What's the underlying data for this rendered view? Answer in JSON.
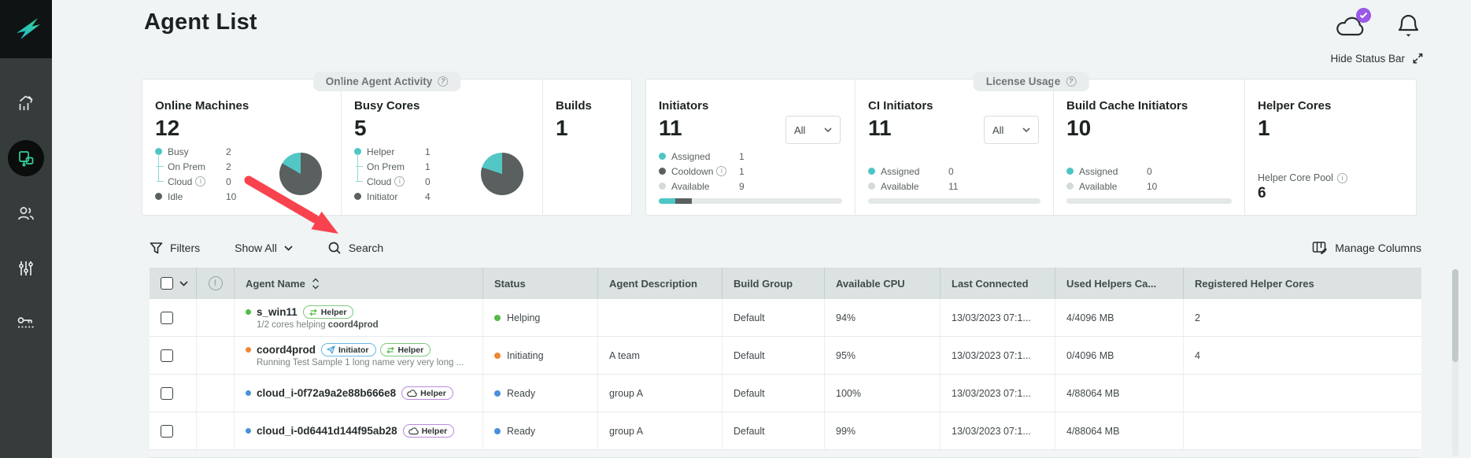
{
  "header": {
    "title": "Agent List",
    "hide_status_bar_label": "Hide Status Bar"
  },
  "sidebar": {
    "icons": [
      "analytics-icon",
      "agents-icon",
      "users-icon",
      "sliders-icon",
      "license-key-icon"
    ],
    "active_item": "agents"
  },
  "activity": {
    "tab_label": "Online Agent Activity",
    "online_machines": {
      "title": "Online Machines",
      "value": "12",
      "busy_label": "Busy",
      "busy_value": "2",
      "on_prem_label": "On Prem",
      "on_prem_value": "2",
      "cloud_label": "Cloud",
      "cloud_value": "0",
      "idle_label": "Idle",
      "idle_value": "10",
      "pie": {
        "type": "pie",
        "slices": [
          {
            "label": "Busy",
            "value": 2,
            "color": "#52c7c5"
          },
          {
            "label": "Idle",
            "value": 10,
            "color": "#5a6060"
          }
        ]
      }
    },
    "busy_cores": {
      "title": "Busy Cores",
      "value": "5",
      "helper_label": "Helper",
      "helper_value": "1",
      "on_prem_label": "On Prem",
      "on_prem_value": "1",
      "cloud_label": "Cloud",
      "cloud_value": "0",
      "initiator_label": "Initiator",
      "initiator_value": "4",
      "pie": {
        "type": "pie",
        "slices": [
          {
            "label": "Helper",
            "value": 1,
            "color": "#52c7c5"
          },
          {
            "label": "Initiator",
            "value": 4,
            "color": "#5a6060"
          }
        ]
      }
    },
    "builds": {
      "title": "Builds",
      "value": "1"
    }
  },
  "license": {
    "tab_label": "License Usage",
    "initiators": {
      "title": "Initiators",
      "value": "11",
      "filter_value": "All",
      "assigned_label": "Assigned",
      "assigned_value": "1",
      "cooldown_label": "Cooldown",
      "cooldown_value": "1",
      "available_label": "Available",
      "available_value": "9",
      "bar_segments": [
        {
          "color": "#4cc6c4",
          "fraction": 0.091
        },
        {
          "color": "#5a6060",
          "fraction": 0.091
        }
      ]
    },
    "ci_initiators": {
      "title": "CI Initiators",
      "value": "11",
      "filter_value": "All",
      "assigned_label": "Assigned",
      "assigned_value": "0",
      "available_label": "Available",
      "available_value": "11",
      "bar_segments": []
    },
    "build_cache_initiators": {
      "title": "Build Cache Initiators",
      "value": "10",
      "assigned_label": "Assigned",
      "assigned_value": "0",
      "available_label": "Available",
      "available_value": "10",
      "bar_segments": []
    },
    "helper_cores": {
      "title": "Helper Cores",
      "value": "1",
      "pool_label": "Helper Core Pool",
      "pool_value": "6"
    }
  },
  "toolbar": {
    "filters_label": "Filters",
    "show_filter_value": "Show All",
    "search_label": "Search",
    "manage_columns_label": "Manage Columns"
  },
  "table": {
    "columns": [
      "Agent Name",
      "Status",
      "Agent Description",
      "Build Group",
      "Available CPU",
      "Last Connected",
      "Used Helpers Ca...",
      "Registered Helper Cores"
    ],
    "rows": [
      {
        "dot_color": "#56b949",
        "name": "s_win11",
        "badges": [
          {
            "type": "helper",
            "label": "Helper"
          }
        ],
        "sub": [
          {
            "text": "1/2 cores helping ",
            "bold": false
          },
          {
            "text": "coord4prod",
            "bold": true
          }
        ],
        "status": {
          "label": "Helping",
          "color": "#56b949"
        },
        "description": "",
        "build_group": "Default",
        "available_cpu": "94%",
        "last_connected": "13/03/2023 07:1...",
        "used_helpers": "4/4096 MB",
        "registered_helper_cores": "2"
      },
      {
        "dot_color": "#ef8733",
        "name": "coord4prod",
        "badges": [
          {
            "type": "initiator",
            "label": "Initiator"
          },
          {
            "type": "helper",
            "label": "Helper"
          }
        ],
        "sub": [
          {
            "text": "Running Test Sample 1 long name very very long ...",
            "bold": false
          }
        ],
        "status": {
          "label": "Initiating",
          "color": "#ef8733"
        },
        "description": "A team",
        "build_group": "Default",
        "available_cpu": "95%",
        "last_connected": "13/03/2023 07:1...",
        "used_helpers": "0/4096 MB",
        "registered_helper_cores": "4"
      },
      {
        "dot_color": "#4a90d9",
        "name": "cloud_i-0f72a9a2e88b666e8",
        "badges": [
          {
            "type": "cloud-helper",
            "label": "Helper"
          }
        ],
        "sub": [],
        "status": {
          "label": "Ready",
          "color": "#4a90d9"
        },
        "description": "group A",
        "build_group": "Default",
        "available_cpu": "100%",
        "last_connected": "13/03/2023 07:1...",
        "used_helpers": "4/88064 MB",
        "registered_helper_cores": ""
      },
      {
        "dot_color": "#4a90d9",
        "name": "cloud_i-0d6441d144f95ab28",
        "badges": [
          {
            "type": "cloud-helper",
            "label": "Helper"
          }
        ],
        "sub": [],
        "status": {
          "label": "Ready",
          "color": "#4a90d9"
        },
        "description": "group A",
        "build_group": "Default",
        "available_cpu": "99%",
        "last_connected": "13/03/2023 07:1...",
        "used_helpers": "4/88064 MB",
        "registered_helper_cores": ""
      }
    ]
  }
}
